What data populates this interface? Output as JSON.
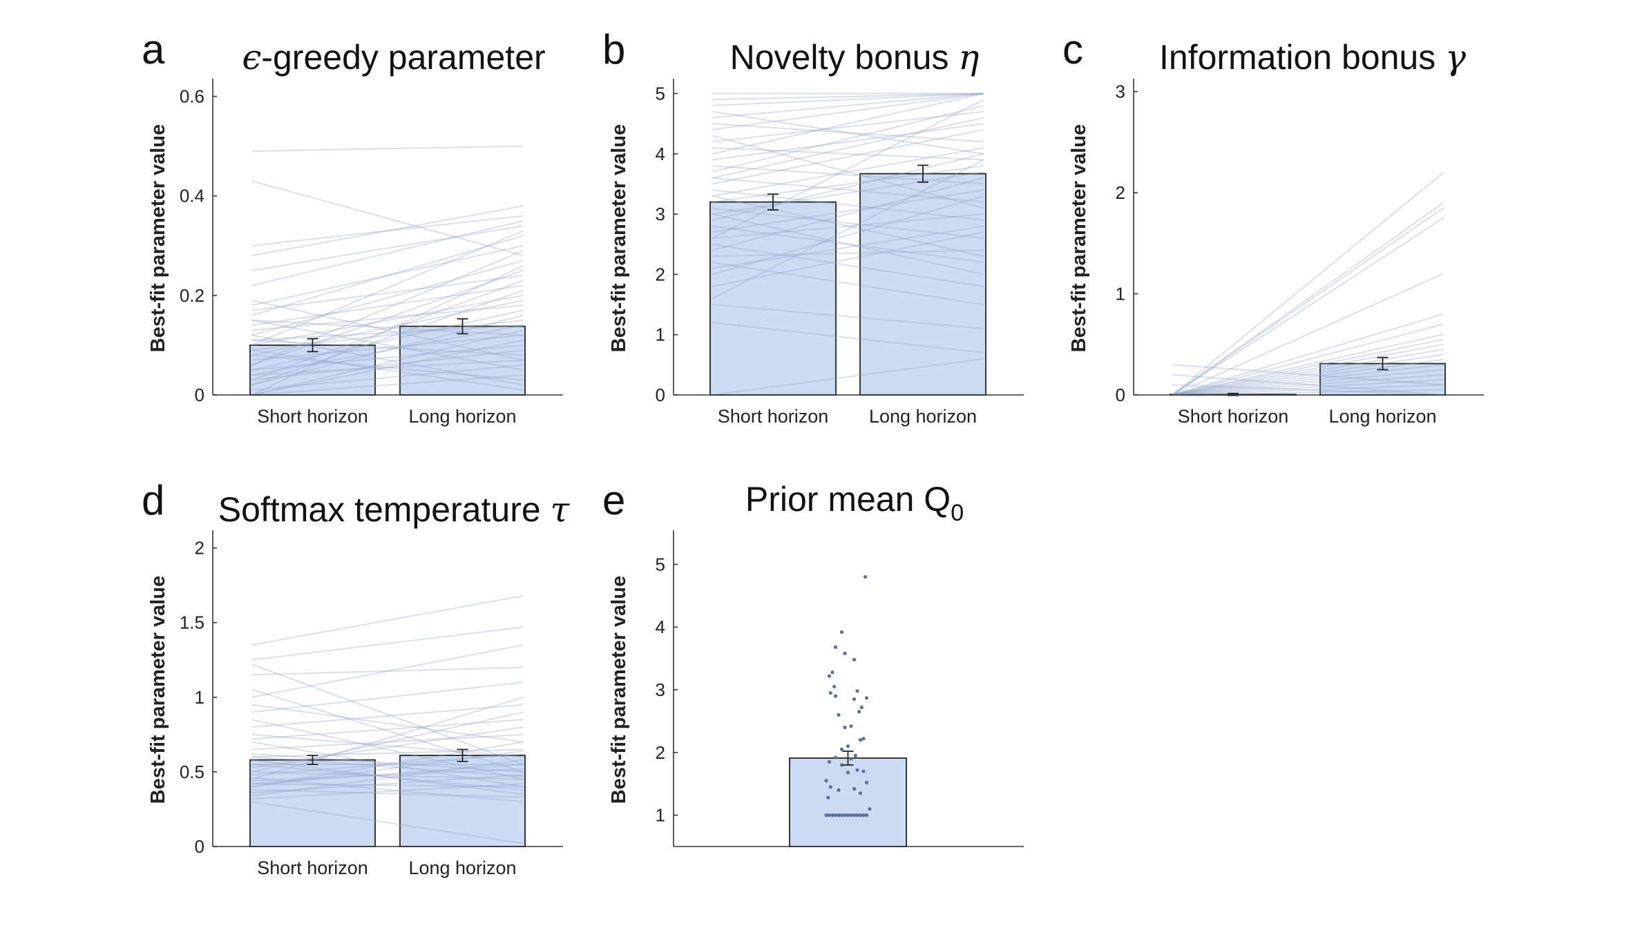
{
  "figure": {
    "colors": {
      "bar_fill": "#cbdcf3",
      "individual_line": "#8ea4c8",
      "dot": "#5a6f9a",
      "axis": "#333333"
    }
  },
  "chart_data": [
    {
      "id": "a",
      "letter": "a",
      "type": "bar",
      "title_prefix": "ϵ",
      "title_text": "-greedy parameter",
      "title_suffix": "",
      "ylabel": "Best-fit parameter value",
      "categories": [
        "Short horizon",
        "Long horizon"
      ],
      "values": [
        0.1,
        0.138
      ],
      "errors": [
        0.013,
        0.015
      ],
      "ylim": [
        0,
        0.63
      ],
      "yticks": [
        0,
        0.2,
        0.4,
        0.6
      ],
      "ytick_labels": [
        "0",
        "0.2",
        "0.4",
        "0.6"
      ],
      "individual_pairs": [
        [
          0.49,
          0.5
        ],
        [
          0.43,
          0.28
        ],
        [
          0.3,
          0.36
        ],
        [
          0.28,
          0.38
        ],
        [
          0.25,
          0.34
        ],
        [
          0.22,
          0.35
        ],
        [
          0.19,
          0.07
        ],
        [
          0.18,
          0.3
        ],
        [
          0.17,
          0.24
        ],
        [
          0.16,
          0.32
        ],
        [
          0.15,
          0.05
        ],
        [
          0.14,
          0.22
        ],
        [
          0.13,
          0.18
        ],
        [
          0.12,
          0.27
        ],
        [
          0.11,
          0.08
        ],
        [
          0.1,
          0.2
        ],
        [
          0.09,
          0.15
        ],
        [
          0.08,
          0.19
        ],
        [
          0.07,
          0.12
        ],
        [
          0.06,
          0.25
        ],
        [
          0.05,
          0.1
        ],
        [
          0.04,
          0.14
        ],
        [
          0.03,
          0.09
        ],
        [
          0.02,
          0.16
        ],
        [
          0.01,
          0.06
        ],
        [
          0.0,
          0.11
        ],
        [
          0.0,
          0.13
        ],
        [
          0.0,
          0.04
        ],
        [
          0.02,
          0.21
        ],
        [
          0.05,
          0.17
        ],
        [
          0.08,
          0.03
        ],
        [
          0.12,
          0.02
        ],
        [
          0.06,
          0.29
        ],
        [
          0.03,
          0.23
        ],
        [
          0.15,
          0.12
        ],
        [
          0.1,
          0.33
        ],
        [
          0.0,
          0.26
        ],
        [
          0.04,
          0.07
        ],
        [
          0.09,
          0.01
        ],
        [
          0.11,
          0.14
        ]
      ]
    },
    {
      "id": "b",
      "letter": "b",
      "type": "bar",
      "title_prefix": "",
      "title_text": "Novelty bonus ",
      "title_suffix": "η",
      "ylabel": "Best-fit parameter value",
      "categories": [
        "Short horizon",
        "Long horizon"
      ],
      "values": [
        3.2,
        3.67
      ],
      "errors": [
        0.13,
        0.14
      ],
      "ylim": [
        0,
        5.2
      ],
      "yticks": [
        0,
        1,
        2,
        3,
        4,
        5
      ],
      "ytick_labels": [
        "0",
        "1",
        "2",
        "3",
        "4",
        "5"
      ],
      "individual_pairs": [
        [
          5.0,
          5.0
        ],
        [
          4.9,
          5.0
        ],
        [
          4.8,
          5.0
        ],
        [
          4.6,
          5.0
        ],
        [
          4.5,
          4.2
        ],
        [
          4.4,
          5.0
        ],
        [
          4.2,
          4.7
        ],
        [
          4.1,
          3.9
        ],
        [
          4.0,
          5.0
        ],
        [
          3.9,
          4.5
        ],
        [
          3.8,
          3.5
        ],
        [
          3.7,
          4.8
        ],
        [
          3.6,
          3.2
        ],
        [
          3.5,
          4.4
        ],
        [
          3.4,
          2.9
        ],
        [
          3.3,
          4.1
        ],
        [
          3.2,
          3.8
        ],
        [
          3.1,
          2.6
        ],
        [
          3.0,
          3.7
        ],
        [
          2.9,
          4.0
        ],
        [
          2.8,
          2.2
        ],
        [
          2.7,
          3.4
        ],
        [
          2.6,
          3.0
        ],
        [
          2.5,
          1.8
        ],
        [
          2.4,
          3.6
        ],
        [
          2.3,
          2.4
        ],
        [
          2.2,
          1.5
        ],
        [
          2.0,
          3.3
        ],
        [
          1.8,
          2.7
        ],
        [
          1.5,
          1.1
        ],
        [
          1.2,
          0.7
        ],
        [
          0.0,
          0.6
        ],
        [
          3.6,
          4.6
        ],
        [
          4.3,
          3.1
        ],
        [
          2.6,
          4.9
        ],
        [
          3.0,
          2.0
        ],
        [
          1.6,
          3.9
        ],
        [
          4.7,
          4.0
        ],
        [
          3.3,
          2.3
        ],
        [
          2.1,
          2.8
        ]
      ]
    },
    {
      "id": "c",
      "letter": "c",
      "type": "bar",
      "title_prefix": "",
      "title_text": "Information bonus ",
      "title_suffix": "γ",
      "ylabel": "Best-fit parameter value",
      "categories": [
        "Short horizon",
        "Long horizon"
      ],
      "values": [
        0.005,
        0.31
      ],
      "errors": [
        0.01,
        0.06
      ],
      "ylim": [
        0,
        3.1
      ],
      "yticks": [
        0,
        1,
        2,
        3
      ],
      "ytick_labels": [
        "0",
        "1",
        "2",
        "3"
      ],
      "individual_pairs": [
        [
          0,
          2.2
        ],
        [
          0,
          1.9
        ],
        [
          0,
          1.85
        ],
        [
          0,
          1.75
        ],
        [
          0,
          1.2
        ],
        [
          0,
          0.8
        ],
        [
          0,
          0.6
        ],
        [
          0,
          0.5
        ],
        [
          0,
          0.45
        ],
        [
          0,
          0.4
        ],
        [
          0,
          0.35
        ],
        [
          0,
          0.3
        ],
        [
          0,
          0.25
        ],
        [
          0,
          0.2
        ],
        [
          0,
          0.15
        ],
        [
          0,
          0.1
        ],
        [
          0,
          0.05
        ],
        [
          0.3,
          0.1
        ],
        [
          0.2,
          0.0
        ],
        [
          0.1,
          0.0
        ],
        [
          0,
          0.7
        ],
        [
          0,
          0.55
        ]
      ]
    },
    {
      "id": "d",
      "letter": "d",
      "type": "bar",
      "title_prefix": "",
      "title_text": "Softmax temperature ",
      "title_suffix": "τ",
      "ylabel": "Best-fit parameter value",
      "categories": [
        "Short horizon",
        "Long horizon"
      ],
      "values": [
        0.58,
        0.61
      ],
      "errors": [
        0.03,
        0.04
      ],
      "ylim": [
        0,
        2.1
      ],
      "yticks": [
        0,
        0.5,
        1,
        1.5,
        2
      ],
      "ytick_labels": [
        "0",
        "0.5",
        "1",
        "1.5",
        "2"
      ],
      "individual_pairs": [
        [
          1.35,
          1.68
        ],
        [
          1.25,
          1.47
        ],
        [
          1.22,
          0.55
        ],
        [
          1.15,
          1.2
        ],
        [
          1.05,
          0.5
        ],
        [
          1.0,
          1.35
        ],
        [
          0.95,
          0.7
        ],
        [
          0.9,
          1.1
        ],
        [
          0.85,
          0.45
        ],
        [
          0.8,
          0.95
        ],
        [
          0.75,
          0.6
        ],
        [
          0.72,
          0.85
        ],
        [
          0.7,
          0.4
        ],
        [
          0.65,
          0.75
        ],
        [
          0.62,
          0.5
        ],
        [
          0.6,
          0.65
        ],
        [
          0.58,
          0.35
        ],
        [
          0.55,
          0.55
        ],
        [
          0.53,
          0.8
        ],
        [
          0.5,
          0.45
        ],
        [
          0.48,
          0.62
        ],
        [
          0.46,
          0.3
        ],
        [
          0.44,
          0.52
        ],
        [
          0.42,
          0.4
        ],
        [
          0.4,
          0.7
        ],
        [
          0.38,
          0.33
        ],
        [
          0.36,
          0.48
        ],
        [
          0.34,
          0.58
        ],
        [
          0.32,
          0.42
        ],
        [
          0.3,
          0.02
        ],
        [
          0.45,
          1.0
        ],
        [
          0.5,
          0.9
        ],
        [
          0.55,
          0.38
        ],
        [
          0.42,
          0.55
        ],
        [
          0.6,
          0.47
        ],
        [
          0.4,
          0.64
        ]
      ]
    },
    {
      "id": "e",
      "letter": "e",
      "type": "bar",
      "title_prefix": "",
      "title_text": "Prior mean Q",
      "title_suffix": "0",
      "ylabel": "Best-fit parameter value",
      "categories": [
        ""
      ],
      "values": [
        1.91
      ],
      "errors": [
        0.11
      ],
      "ylim": [
        0.5,
        5.5
      ],
      "yticks": [
        1,
        2,
        3,
        4,
        5
      ],
      "ytick_labels": [
        "1",
        "2",
        "3",
        "4",
        "5"
      ],
      "points": [
        [
          0.28,
          4.8
        ],
        [
          -0.1,
          3.92
        ],
        [
          -0.2,
          3.68
        ],
        [
          0.1,
          3.48
        ],
        [
          -0.05,
          3.58
        ],
        [
          -0.25,
          3.28
        ],
        [
          -0.3,
          3.22
        ],
        [
          -0.22,
          3.05
        ],
        [
          -0.28,
          2.95
        ],
        [
          -0.2,
          2.9
        ],
        [
          0.15,
          2.98
        ],
        [
          0.3,
          2.87
        ],
        [
          0.1,
          2.85
        ],
        [
          0.22,
          2.72
        ],
        [
          0.18,
          2.65
        ],
        [
          -0.15,
          2.6
        ],
        [
          -0.05,
          2.4
        ],
        [
          0.05,
          2.42
        ],
        [
          0.25,
          2.22
        ],
        [
          0.2,
          2.2
        ],
        [
          0.0,
          2.1
        ],
        [
          -0.1,
          2.05
        ],
        [
          0.12,
          1.95
        ],
        [
          -0.2,
          1.92
        ],
        [
          0.05,
          1.9
        ],
        [
          -0.3,
          1.85
        ],
        [
          -0.1,
          1.8
        ],
        [
          0.15,
          1.72
        ],
        [
          0.25,
          1.7
        ],
        [
          0.0,
          1.68
        ],
        [
          -0.35,
          1.55
        ],
        [
          0.3,
          1.52
        ],
        [
          -0.28,
          1.45
        ],
        [
          0.1,
          1.42
        ],
        [
          -0.15,
          1.4
        ],
        [
          0.2,
          1.35
        ],
        [
          -0.32,
          1.28
        ],
        [
          0.35,
          1.1
        ],
        [
          -0.35,
          1.0
        ],
        [
          -0.3,
          1.0
        ],
        [
          -0.25,
          1.0
        ],
        [
          -0.2,
          1.0
        ],
        [
          -0.15,
          1.0
        ],
        [
          -0.1,
          1.0
        ],
        [
          -0.05,
          1.0
        ],
        [
          0.0,
          1.0
        ],
        [
          0.05,
          1.0
        ],
        [
          0.1,
          1.0
        ],
        [
          0.15,
          1.0
        ],
        [
          0.2,
          1.0
        ],
        [
          0.25,
          1.0
        ],
        [
          0.3,
          1.0
        ]
      ]
    }
  ]
}
